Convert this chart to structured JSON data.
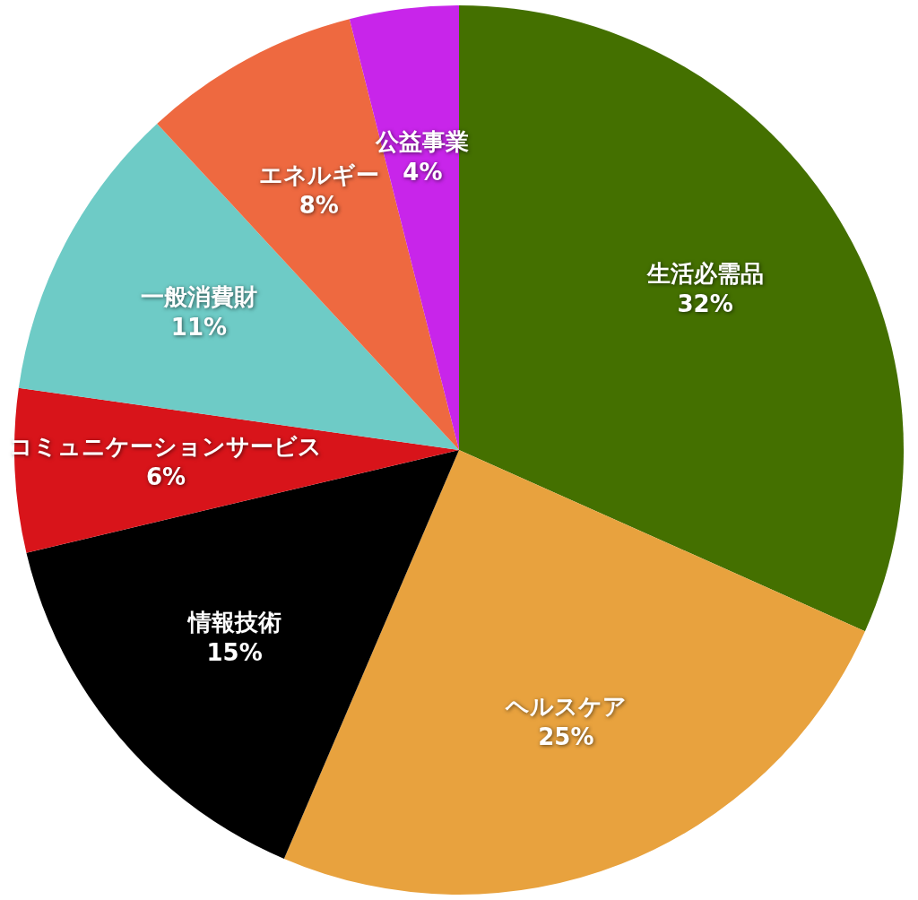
{
  "chart_data": {
    "type": "pie",
    "categories": [
      "生活必需品",
      "ヘルスケア",
      "情報技術",
      "コミュニケーションサービス",
      "一般消費財",
      "エネルギー",
      "公益事業"
    ],
    "values": [
      32,
      25,
      15,
      6,
      11,
      8,
      4
    ],
    "value_labels": [
      "32%",
      "25%",
      "15%",
      "6%",
      "11%",
      "8%",
      "4%"
    ],
    "colors": [
      "#447000",
      "#e8a23e",
      "#000000",
      "#d8141a",
      "#6ecbc6",
      "#ee6940",
      "#c825ea"
    ],
    "legend": false
  }
}
